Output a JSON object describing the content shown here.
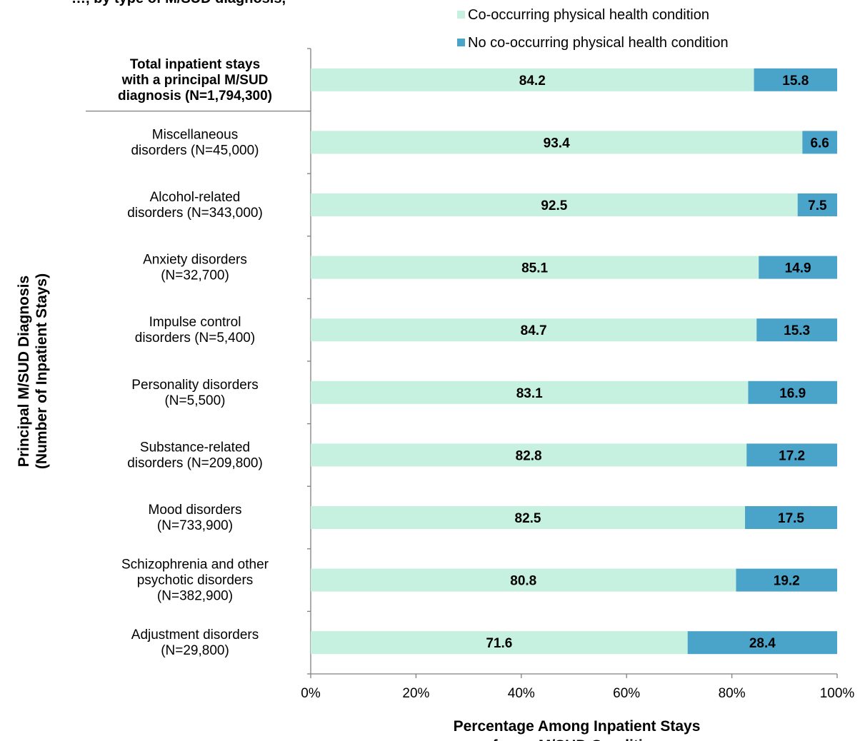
{
  "clipped_title": "…, by type of M/SUD diagnosis,",
  "colors": {
    "cooccurring": "#c6f0df",
    "no_cooccurring": "#4aa3c9",
    "axis": "#808080"
  },
  "chart_data": {
    "type": "bar",
    "orientation": "horizontal",
    "stacked": true,
    "xlabel": [
      "Percentage Among Inpatient Stays",
      "for an M/SUD Condition"
    ],
    "ylabel": [
      "Principal M/SUD Diagnosis",
      "(Number of Inpatient Stays)"
    ],
    "xlim": [
      0,
      100
    ],
    "xticks": [
      "0%",
      "20%",
      "40%",
      "60%",
      "80%",
      "100%"
    ],
    "legend_position": "top-right",
    "series": [
      {
        "name": "Co-occurring physical health condition",
        "color": "#c6f0df",
        "values": [
          84.2,
          93.4,
          92.5,
          85.1,
          84.7,
          83.1,
          82.8,
          82.5,
          80.8,
          71.6
        ]
      },
      {
        "name": "No co-occurring physical health condition",
        "color": "#4aa3c9",
        "values": [
          15.8,
          6.6,
          7.5,
          14.9,
          15.3,
          16.9,
          17.2,
          17.5,
          19.2,
          28.4
        ]
      }
    ],
    "categories": [
      {
        "lines": [
          "Total inpatient stays",
          "with a principal M/SUD",
          "diagnosis (N=1,794,300)"
        ],
        "bold": true
      },
      {
        "lines": [
          "Miscellaneous",
          "disorders (N=45,000)"
        ],
        "bold": false
      },
      {
        "lines": [
          "Alcohol-related",
          "disorders (N=343,000)"
        ],
        "bold": false
      },
      {
        "lines": [
          "Anxiety disorders",
          "(N=32,700)"
        ],
        "bold": false
      },
      {
        "lines": [
          "Impulse control",
          "disorders (N=5,400)"
        ],
        "bold": false
      },
      {
        "lines": [
          "Personality disorders",
          "(N=5,500)"
        ],
        "bold": false
      },
      {
        "lines": [
          "Substance-related",
          "disorders (N=209,800)"
        ],
        "bold": false
      },
      {
        "lines": [
          "Mood disorders",
          "(N=733,900)"
        ],
        "bold": false
      },
      {
        "lines": [
          "Schizophrenia and other",
          "psychotic disorders",
          "(N=382,900)"
        ],
        "bold": false
      },
      {
        "lines": [
          "Adjustment disorders",
          "(N=29,800)"
        ],
        "bold": false
      }
    ],
    "value_labels": [
      [
        "84.2",
        "15.8"
      ],
      [
        "93.4",
        "6.6"
      ],
      [
        "92.5",
        "7.5"
      ],
      [
        "85.1",
        "14.9"
      ],
      [
        "84.7",
        "15.3"
      ],
      [
        "83.1",
        "16.9"
      ],
      [
        "82.8",
        "17.2"
      ],
      [
        "82.5",
        "17.5"
      ],
      [
        "80.8",
        "19.2"
      ],
      [
        "71.6",
        "28.4"
      ]
    ]
  }
}
